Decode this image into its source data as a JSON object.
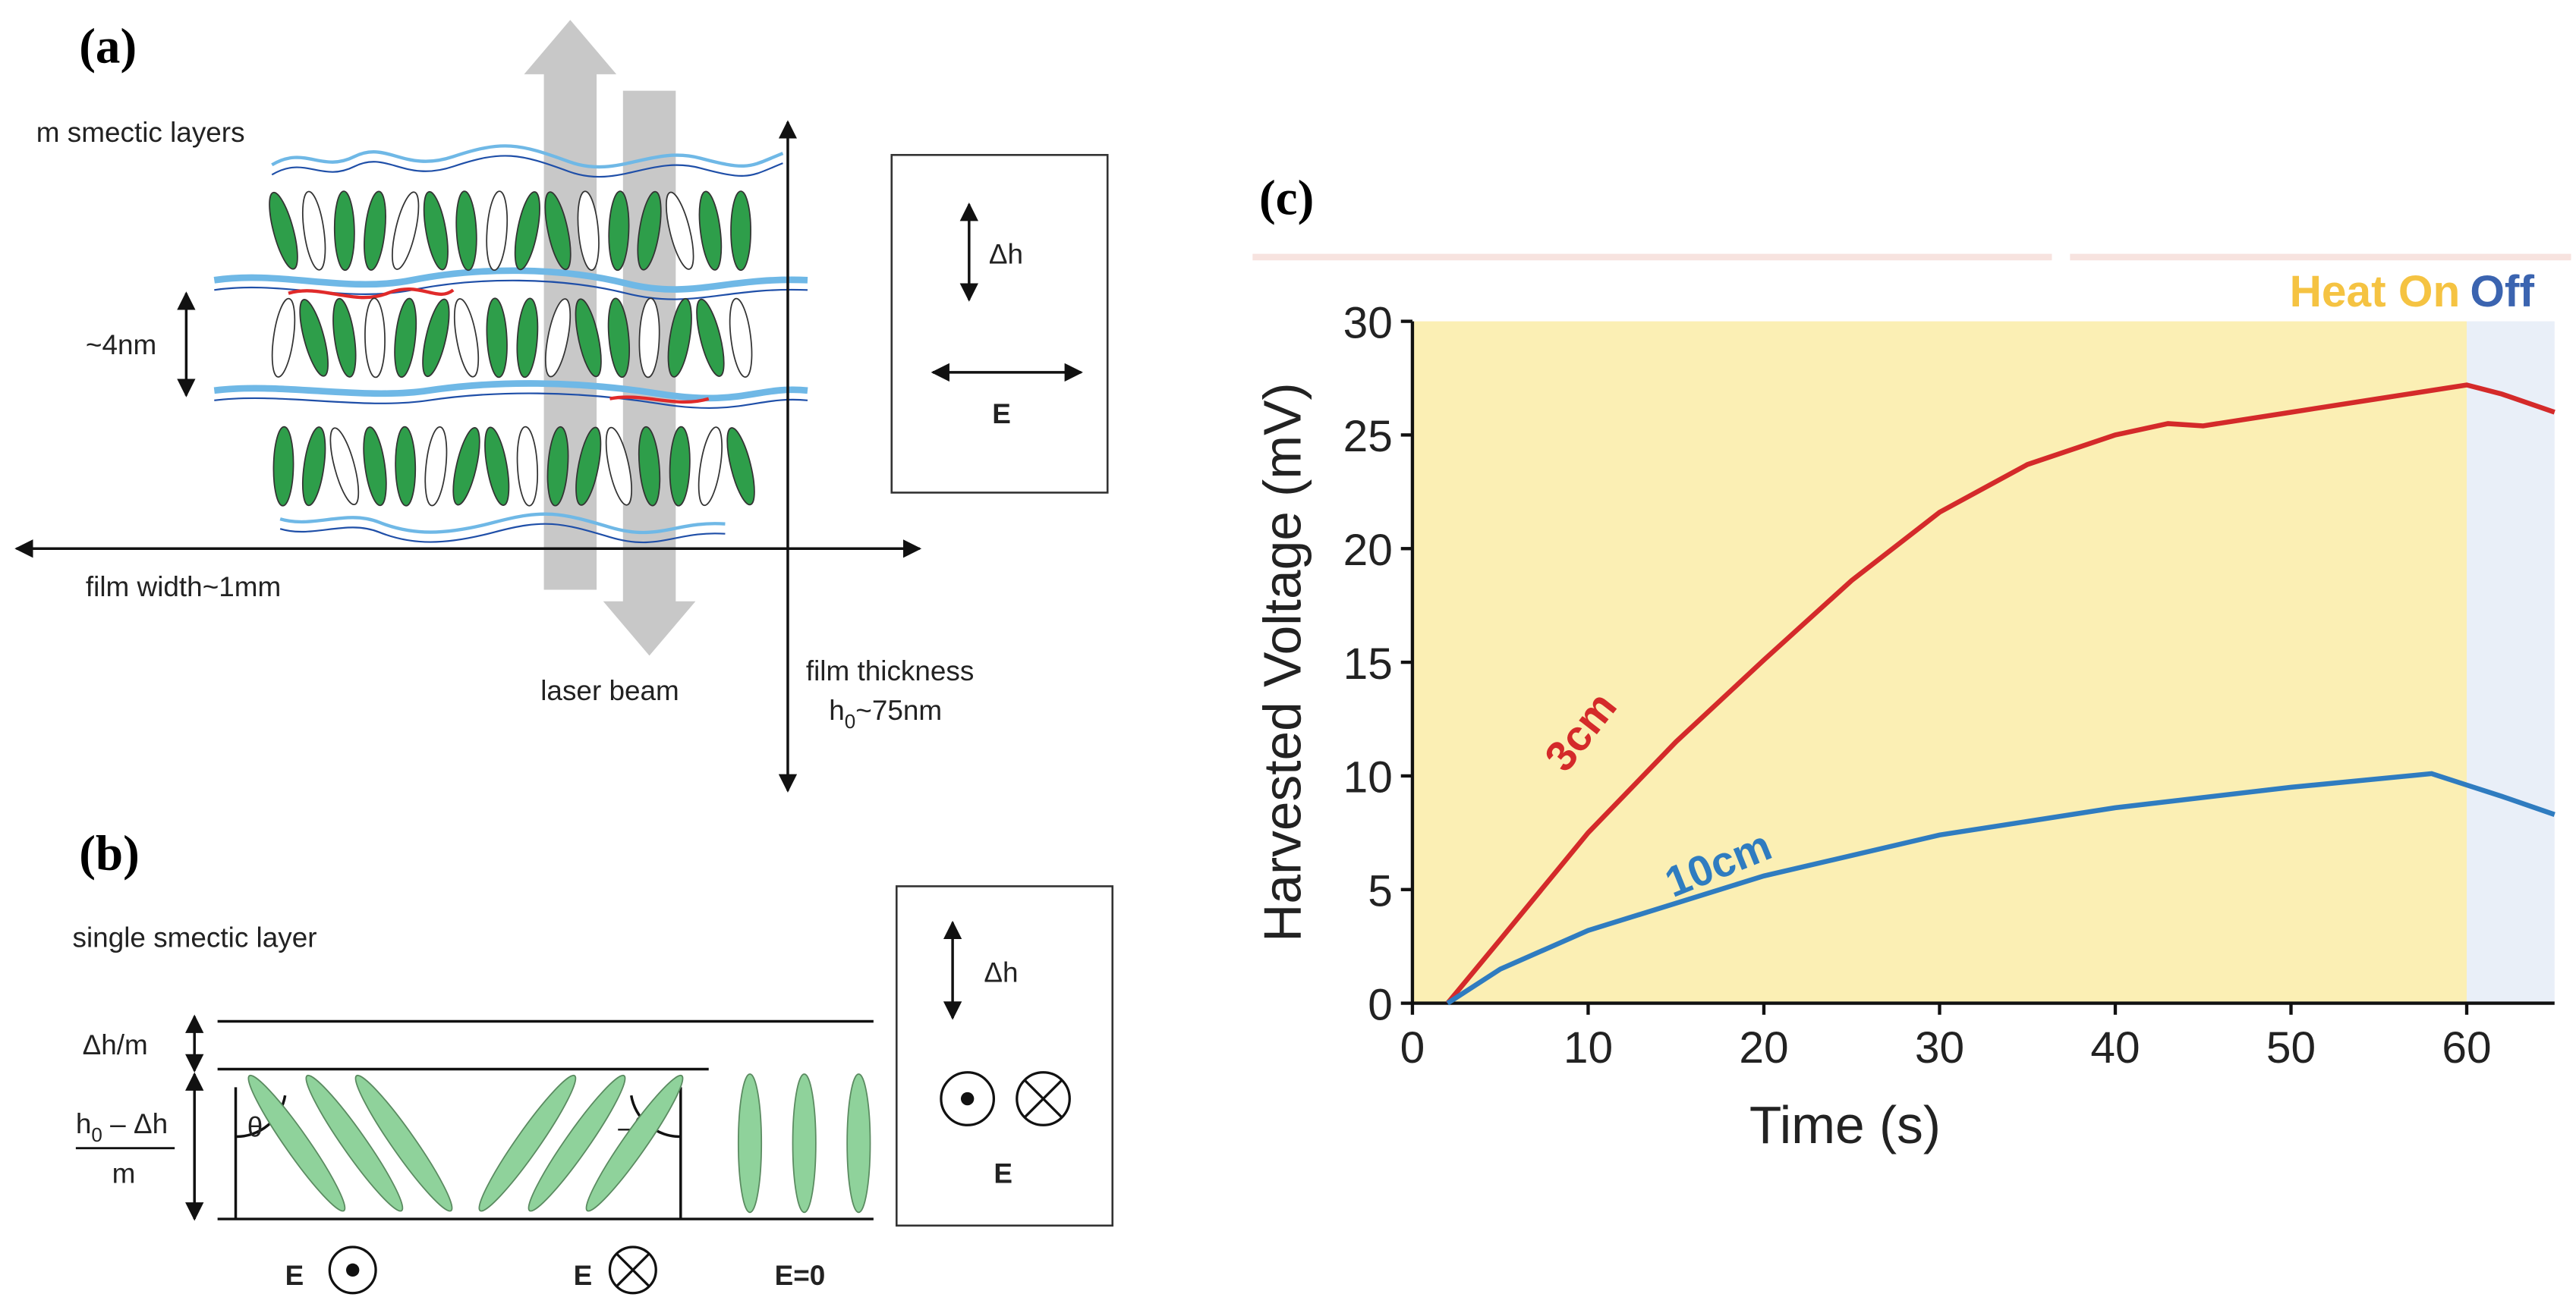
{
  "panel_a": {
    "label": "(a)",
    "layers_label": "m smectic layers",
    "spacing": "~4nm",
    "width": "film width~1mm",
    "beam": "laser beam",
    "thickness": "film thickness",
    "thickness_value": {
      "base": "h",
      "sub": "0",
      "rest": "~75nm"
    },
    "box": {
      "dh": "Δh",
      "field": "E"
    }
  },
  "panel_b": {
    "label": "(b)",
    "layer_label": "single smectic layer",
    "dh_m": "Δh/m",
    "height": {
      "base": "h",
      "sub": "0",
      "rest": " – Δh",
      "den": "m"
    },
    "theta": "θ",
    "neg_theta": "–θ",
    "field_1": "E",
    "field_2": "E",
    "field_0": "E=0",
    "box": {
      "dh": "Δh",
      "field": "E"
    }
  },
  "chart_data": {
    "type": "line",
    "label": "(c)",
    "xlabel": "Time (s)",
    "ylabel": "Harvested Voltage (mV)",
    "xlim": [
      0,
      65
    ],
    "ylim": [
      0,
      30
    ],
    "xticks": [
      0,
      10,
      20,
      30,
      40,
      50,
      60
    ],
    "yticks": [
      0,
      5,
      10,
      15,
      20,
      25,
      30
    ],
    "spans": [
      {
        "label": "Heat On",
        "range": [
          0,
          60
        ],
        "color": "#fbefb4",
        "text_color": "#f5c342"
      },
      {
        "label": "Off",
        "range": [
          60,
          65
        ],
        "color": "#e9eff8",
        "text_color": "#3b64b0"
      }
    ],
    "series": [
      {
        "name": "3cm",
        "color": "#d42a2a",
        "x": [
          2,
          5,
          10,
          15,
          20,
          25,
          30,
          35,
          40,
          43,
          45,
          50,
          55,
          60,
          62,
          65
        ],
        "values": [
          0,
          2.8,
          7.5,
          11.5,
          15.1,
          18.6,
          21.6,
          23.7,
          25,
          25.5,
          25.4,
          26,
          26.6,
          27.2,
          26.8,
          26
        ]
      },
      {
        "name": "10cm",
        "color": "#2f7cc0",
        "x": [
          2,
          5,
          10,
          20,
          30,
          40,
          50,
          58,
          60,
          62,
          65
        ],
        "values": [
          0,
          1.5,
          3.2,
          5.6,
          7.4,
          8.6,
          9.5,
          10.1,
          9.6,
          9.1,
          8.3
        ]
      }
    ]
  }
}
